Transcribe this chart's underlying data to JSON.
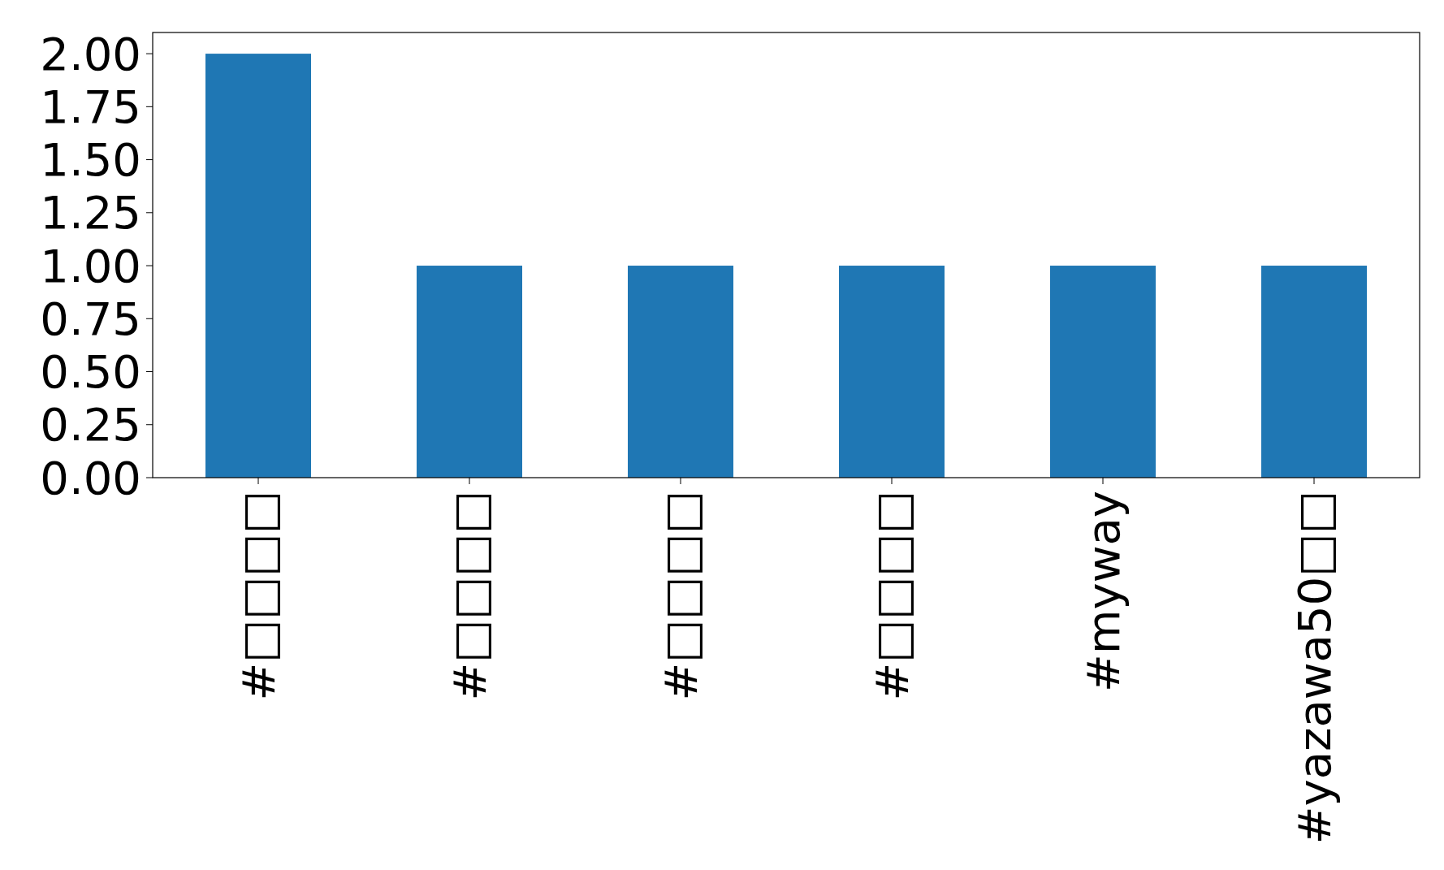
{
  "chart_data": {
    "type": "bar",
    "categories": [
      "#□□□□",
      "#□□□□",
      "#□□□□",
      "#□□□□",
      "#myway",
      "#yazawa50□□"
    ],
    "values": [
      2,
      1,
      1,
      1,
      1,
      1
    ],
    "color": "#1f77b4",
    "ylim": [
      0,
      2.1
    ],
    "yticks": [
      {
        "value": 0,
        "label": "0.00"
      },
      {
        "value": 0.25,
        "label": "0.25"
      },
      {
        "value": 0.5,
        "label": "0.50"
      },
      {
        "value": 0.75,
        "label": "0.75"
      },
      {
        "value": 1,
        "label": "1.00"
      },
      {
        "value": 1.25,
        "label": "1.25"
      },
      {
        "value": 1.5,
        "label": "1.50"
      },
      {
        "value": 1.75,
        "label": "1.75"
      },
      {
        "value": 2,
        "label": "2.00"
      }
    ],
    "grid": false
  }
}
